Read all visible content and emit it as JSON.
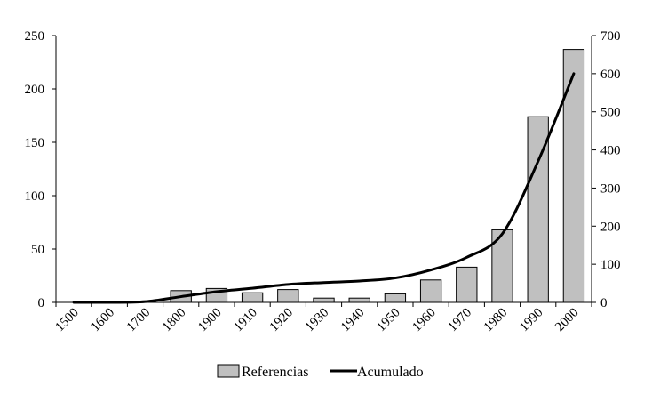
{
  "chart_data": {
    "type": "bar",
    "title": "",
    "xlabel": "",
    "categories": [
      "1500",
      "1600",
      "1700",
      "1800",
      "1900",
      "1910",
      "1920",
      "1930",
      "1940",
      "1950",
      "1960",
      "1970",
      "1980",
      "1990",
      "2000"
    ],
    "series": [
      {
        "name": "Referencias",
        "type": "bar",
        "axis": "left",
        "values": [
          0,
          0,
          1,
          11,
          13,
          9,
          12,
          4,
          4,
          8,
          21,
          33,
          68,
          174,
          237
        ],
        "color": "#c0c0c0"
      },
      {
        "name": "Acumulado",
        "type": "line",
        "axis": "right",
        "values": [
          0,
          0,
          2,
          15,
          28,
          37,
          47,
          52,
          56,
          64,
          85,
          118,
          180,
          370,
          600
        ],
        "color": "#000000"
      }
    ],
    "y_left": {
      "min": 0,
      "max": 250,
      "ticks": [
        0,
        50,
        100,
        150,
        200,
        250
      ],
      "tick_labels": [
        "0",
        "50",
        "100",
        "150",
        "200",
        "250"
      ]
    },
    "y_right": {
      "min": 0,
      "max": 700,
      "ticks": [
        0,
        100,
        200,
        300,
        400,
        500,
        600,
        700
      ],
      "tick_labels": [
        "0",
        "100",
        "200",
        "300",
        "400",
        "500",
        "600",
        "700"
      ]
    },
    "grid": false,
    "legend": {
      "position": "bottom",
      "entries": [
        "Referencias",
        "Acumulado"
      ]
    }
  }
}
